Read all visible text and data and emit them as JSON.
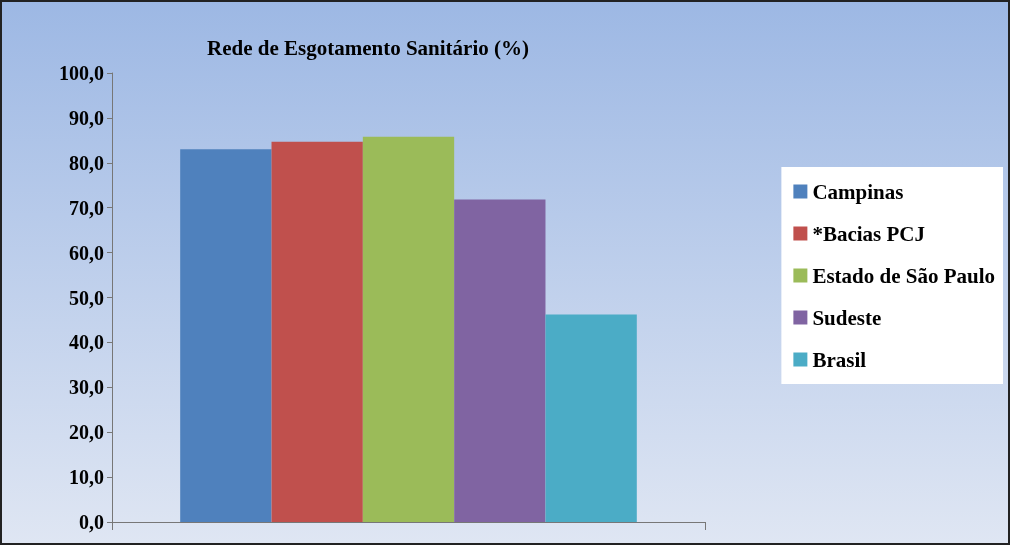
{
  "chart_data": {
    "type": "bar",
    "title": "Rede de Esgotamento Sanitário (%)",
    "categories": [
      null
    ],
    "series": [
      {
        "name": "Campinas",
        "color": "#4f81bd",
        "values": [
          83
        ]
      },
      {
        "name": "*Bacias PCJ",
        "color": "#c0504d",
        "values": [
          84.7
        ]
      },
      {
        "name": "Estado de São Paulo",
        "color": "#9bbb59",
        "values": [
          85.8
        ]
      },
      {
        "name": "Sudeste",
        "color": "#8064a2",
        "values": [
          71.8
        ]
      },
      {
        "name": "Brasil",
        "color": "#4bacc6",
        "values": [
          46.2
        ]
      }
    ],
    "ylim": [
      0,
      100
    ],
    "yticks": [
      {
        "value": 0,
        "label": "0,0"
      },
      {
        "value": 10,
        "label": "10,0"
      },
      {
        "value": 20,
        "label": "20,0"
      },
      {
        "value": 30,
        "label": "30,0"
      },
      {
        "value": 40,
        "label": "40,0"
      },
      {
        "value": 50,
        "label": "50,0"
      },
      {
        "value": 60,
        "label": "60,0"
      },
      {
        "value": 70,
        "label": "70,0"
      },
      {
        "value": 80,
        "label": "80,0"
      },
      {
        "value": 90,
        "label": "90,0"
      },
      {
        "value": 100,
        "label": "100,0"
      }
    ],
    "grid": false,
    "legend": "right"
  }
}
